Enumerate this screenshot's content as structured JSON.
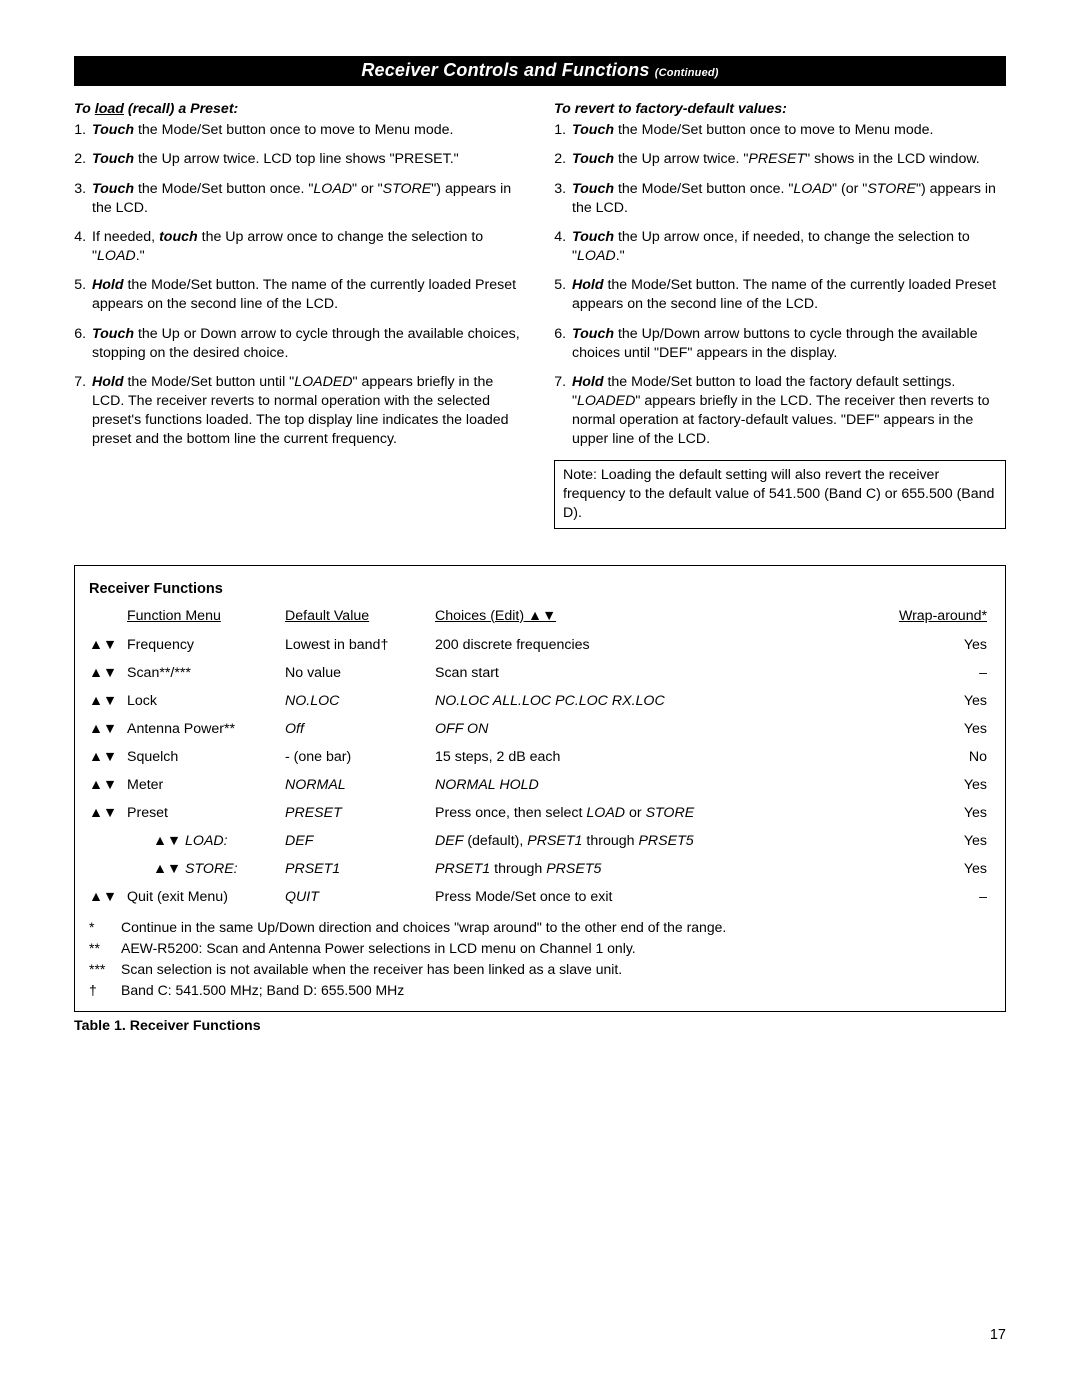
{
  "header": {
    "title": "Receiver Controls and Functions",
    "continued": "(Continued)"
  },
  "left": {
    "heading_prefix": "To ",
    "heading_uword": "load",
    "heading_suffix": " (recall) a Preset:",
    "items": [
      {
        "pre": "Touch",
        "rest": " the Mode/Set button once to move to Menu mode."
      },
      {
        "pre": "Touch",
        "rest": " the Up arrow twice. LCD top line shows \"PRESET.\""
      },
      {
        "pre": "Touch",
        "rest": " the Mode/Set button once. \"LOAD\" or \"STORE\") appears in the LCD.",
        "q1": "LOAD",
        "q2": "STORE",
        "tail": ") appears in the LCD."
      },
      {
        "plain_lead": "If needed, ",
        "pre": "touch",
        "rest": " the Up arrow once to change the selection to \"LOAD.\"",
        "q1": "LOAD"
      },
      {
        "pre": "Hold",
        "rest": " the Mode/Set button. The name of the currently loaded Preset appears on the second line of the LCD."
      },
      {
        "pre": "Touch",
        "rest": " the Up or Down arrow to cycle through the available choices, stopping on the desired choice."
      },
      {
        "pre": "Hold",
        "rest": " the Mode/Set button until \"LOADED\" appears briefly in the LCD. The receiver reverts to normal operation with the selected preset's functions loaded. The top display line indicates the loaded preset and the bottom line the current frequency.",
        "q1": "LOADED"
      }
    ]
  },
  "right": {
    "heading": "To revert to factory-default values:",
    "items": [
      {
        "pre": "Touch",
        "rest": " the Mode/Set button once to move to Menu mode."
      },
      {
        "pre": "Touch",
        "rest": " the Up arrow twice. \"PRESET\" shows in the LCD window.",
        "q1": "PRESET"
      },
      {
        "pre": "Touch",
        "rest": " the Mode/Set button once. \"LOAD\" (or \"STORE\") appears in the LCD.",
        "q1": "LOAD",
        "q2": "STORE"
      },
      {
        "pre": "Touch",
        "rest": " the Up arrow once, if needed, to change the selection to \"LOAD.\"",
        "q1": "LOAD"
      },
      {
        "pre": "Hold",
        "rest": " the Mode/Set button. The name of the currently loaded Preset appears on the second line of the LCD."
      },
      {
        "pre": "Touch",
        "rest": " the Up/Down arrow buttons to cycle through the available choices until \"DEF\" appears in the display."
      },
      {
        "pre": "Hold",
        "rest": " the Mode/Set button to load the factory default settings. \"LOADED\" appears briefly in the LCD. The receiver then reverts to normal operation at factory-default values. \"DEF\" appears in the upper line of the LCD.",
        "q1": "LOADED"
      }
    ],
    "note": "Note: Loading the default setting will also revert the receiver frequency to the default value of 541.500 (Band C) or 655.500 (Band D)."
  },
  "functions": {
    "title": "Receiver Functions",
    "headers": {
      "c0": "",
      "c1": "Function Menu",
      "c2": "Default Value",
      "c3": "Choices (Edit)  ▲▼",
      "c4": "Wrap-around*"
    },
    "rows": [
      {
        "a": "▲▼",
        "menu": "Frequency",
        "def": "Lowest in band†",
        "choices": "200 discrete frequencies",
        "wrap": "Yes"
      },
      {
        "a": "▲▼",
        "menu": "Scan**/***",
        "def": "No value",
        "choices": "Scan start",
        "wrap": "–"
      },
      {
        "a": "▲▼",
        "menu": "Lock",
        "def_i": "NO.LOC",
        "choices_i": "NO.LOC   ALL.LOC   PC.LOC   RX.LOC",
        "wrap": "Yes"
      },
      {
        "a": "▲▼",
        "menu": "Antenna Power**",
        "def_i": "Off",
        "choices_i": "OFF          ON",
        "wrap": "Yes"
      },
      {
        "a": "▲▼",
        "menu": "Squelch",
        "def": "- (one bar)",
        "choices": "15 steps, 2 dB each",
        "wrap": "No"
      },
      {
        "a": "▲▼",
        "menu": "Meter",
        "def_i": "NORMAL",
        "choices_i": "NORMAL          HOLD",
        "wrap": "Yes"
      },
      {
        "a": "▲▼",
        "menu": "Preset",
        "def_i": "PRESET",
        "choices_mix_pre": "Press once, then select ",
        "choices_mix_i1": "LOAD",
        "choices_mix_mid": " or ",
        "choices_mix_i2": "STORE",
        "wrap": "Yes"
      },
      {
        "indent": true,
        "a": "▲▼",
        "menu_i": "LOAD:",
        "def_i": "DEF",
        "choices_mix_i1": "DEF",
        "choices_mix_mid": " (default), ",
        "choices_mix_i2": "PRSET1",
        "choices_mix_mid2": " through ",
        "choices_mix_i3": "PRSET5",
        "wrap": "Yes"
      },
      {
        "indent": true,
        "a": "▲▼",
        "menu_i": "STORE:",
        "def_i": "PRSET1",
        "choices_mix_i1": "PRSET1",
        "choices_mix_mid": " through ",
        "choices_mix_i2": "PRSET5",
        "wrap": "Yes"
      },
      {
        "a": "▲▼",
        "menu": "Quit (exit Menu)",
        "def_i": "QUIT",
        "choices": "Press Mode/Set once to exit",
        "wrap": "–"
      }
    ],
    "footnotes": [
      {
        "sym": "*",
        "text": "Continue in the same Up/Down direction and choices \"wrap around\" to the other end of the range."
      },
      {
        "sym": "**",
        "text": "AEW-R5200: Scan and Antenna Power selections in LCD menu on Channel 1 only."
      },
      {
        "sym": "***",
        "text": "Scan selection is not available when the receiver has been linked as a slave unit."
      },
      {
        "sym": "†",
        "text": "Band C: 541.500 MHz; Band D: 655.500 MHz"
      }
    ],
    "caption": "Table 1. Receiver Functions"
  },
  "page_number": "17"
}
